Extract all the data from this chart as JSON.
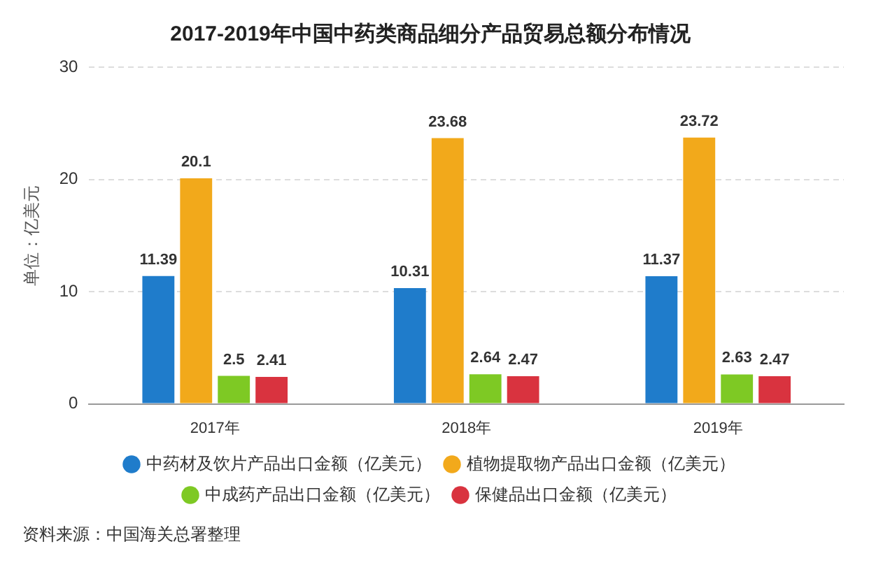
{
  "chart_data": {
    "type": "bar",
    "title": "2017-2019年中国中药类商品细分产品贸易总额分布情况",
    "ylabel": "单位：亿美元",
    "categories": [
      "2017年",
      "2018年",
      "2019年"
    ],
    "series": [
      {
        "name": "中药材及饮片产品出口金额（亿美元）",
        "color": "#1f7ccb",
        "values": [
          11.39,
          10.31,
          11.37
        ]
      },
      {
        "name": "植物提取物产品出口金额（亿美元）",
        "color": "#f2a91b",
        "values": [
          20.1,
          23.68,
          23.72
        ]
      },
      {
        "name": "中成药产品出口金额（亿美元）",
        "color": "#7ec924",
        "values": [
          2.5,
          2.64,
          2.63
        ]
      },
      {
        "name": "保健品出口金额（亿美元）",
        "color": "#d9333f",
        "values": [
          2.41,
          2.47,
          2.47
        ]
      }
    ],
    "ylim": [
      0,
      30
    ],
    "yticks": [
      0,
      10,
      20,
      30
    ],
    "grid": "y",
    "legend": "bottom",
    "data_labels": true,
    "annotations": [
      "资料来源：中国海关总署整理"
    ]
  }
}
